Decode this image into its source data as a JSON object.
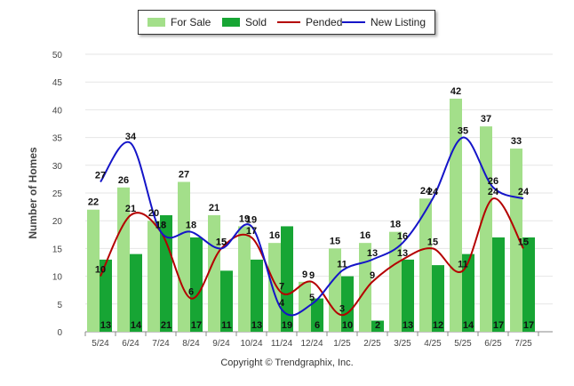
{
  "legend": {
    "for_sale": "For Sale",
    "sold": "Sold",
    "pended": "Pended",
    "new_listing": "New Listing"
  },
  "copyright": "Copyright © Trendgraphix, Inc.",
  "colors": {
    "for_sale": "#a3df8a",
    "sold": "#17a534",
    "pended": "#b40000",
    "new_listing": "#1515c8",
    "grid": "#e6e6e6"
  },
  "chart_data": {
    "type": "bar",
    "categories": [
      "5/24",
      "6/24",
      "7/24",
      "8/24",
      "9/24",
      "10/24",
      "11/24",
      "12/24",
      "1/25",
      "2/25",
      "3/25",
      "4/25",
      "5/25",
      "6/25",
      "7/25"
    ],
    "ylabel": "Number of Homes",
    "ylim": [
      0,
      50
    ],
    "yticks": [
      0,
      5,
      10,
      15,
      20,
      25,
      30,
      35,
      40,
      45,
      50
    ],
    "legend_position": "top",
    "grid": true,
    "series": [
      {
        "name": "For Sale",
        "type": "bar",
        "values": [
          22,
          26,
          20,
          27,
          21,
          19,
          16,
          9,
          15,
          16,
          18,
          24,
          42,
          37,
          33
        ]
      },
      {
        "name": "Sold",
        "type": "bar",
        "values": [
          13,
          14,
          21,
          17,
          11,
          13,
          19,
          6,
          10,
          2,
          13,
          12,
          14,
          17,
          17
        ]
      },
      {
        "name": "Pended",
        "type": "line",
        "values": [
          10,
          21,
          18,
          6,
          15,
          17,
          7,
          9,
          3,
          9,
          13,
          15,
          11,
          24,
          15
        ]
      },
      {
        "name": "New Listing",
        "type": "line",
        "values": [
          27,
          34,
          18,
          18,
          15,
          19,
          4,
          5,
          11,
          13,
          16,
          24,
          35,
          26,
          24
        ]
      }
    ]
  }
}
